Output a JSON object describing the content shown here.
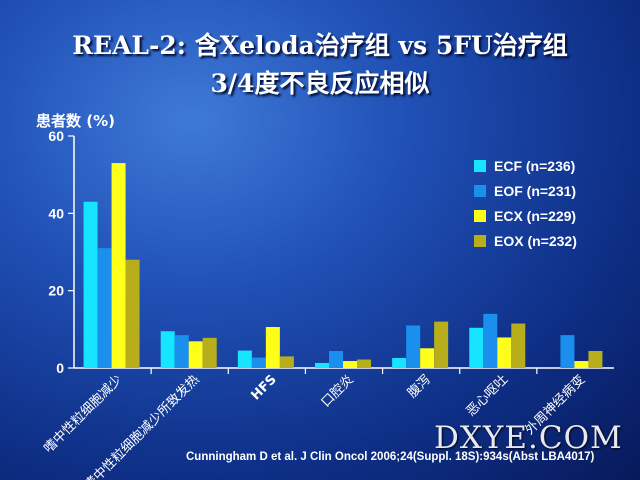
{
  "title_line1": "REAL-2: 含Xeloda治疗组 vs 5FU治疗组",
  "title_line2": "3/4度不良反应相似",
  "citation": "Cunningham D et al. J Clin Oncol 2006;24(Suppl. 18S):934s(Abst LBA4017)",
  "watermark": "DXYE.COM",
  "colors": {
    "ECF": "#17e5ff",
    "EOF": "#1a8fee",
    "ECX": "#ffff1a",
    "EOX": "#b8ad1a",
    "axis": "#ffffff"
  },
  "chart_data": {
    "type": "bar",
    "title": "",
    "xlabel": "",
    "ylabel": "患者数 (%)",
    "ylim": [
      0,
      60
    ],
    "yticks": [
      0,
      20,
      40,
      60
    ],
    "grid": false,
    "legend_position": "top-right",
    "categories": [
      "嗜中性粒细胞减少",
      "嗜中性粒细胞减少所致发热",
      "HFS",
      "口腔炎",
      "腹泻",
      "恶心呕吐",
      "外周神经病变"
    ],
    "series": [
      {
        "name": "ECF (n=236)",
        "values": [
          43,
          9.5,
          4.5,
          1.3,
          2.6,
          10.4,
          0
        ]
      },
      {
        "name": "EOF (n=231)",
        "values": [
          31,
          8.5,
          2.7,
          4.4,
          11,
          14,
          8.5
        ]
      },
      {
        "name": "ECX (n=229)",
        "values": [
          53,
          6.9,
          10.6,
          1.8,
          5.1,
          7.9,
          1.8
        ]
      },
      {
        "name": "EOX (n=232)",
        "values": [
          28,
          7.8,
          3,
          2.2,
          12,
          11.5,
          4.4
        ]
      }
    ]
  }
}
